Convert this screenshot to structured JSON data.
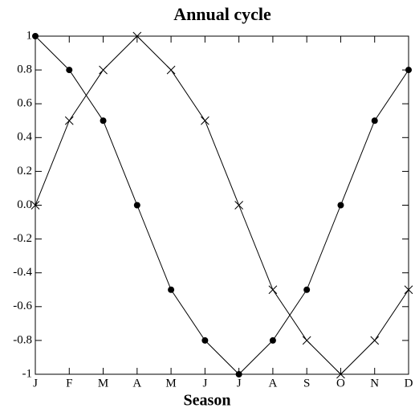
{
  "chart_data": {
    "type": "line",
    "title": "Annual cycle",
    "x_label": "Season",
    "categories": [
      "J",
      "F",
      "M",
      "A",
      "M",
      "J",
      "J",
      "A",
      "S",
      "O",
      "N",
      "D"
    ],
    "series": [
      {
        "color": "#000000",
        "marker": "circle",
        "values": [
          1,
          0.8,
          0.5,
          0,
          -0.5,
          -0.8,
          -1,
          -0.8,
          -0.5,
          0,
          0.5,
          0.8
        ]
      },
      {
        "color": "#000000",
        "marker": "cross",
        "values": [
          0,
          0.5,
          0.8,
          1,
          0.8,
          0.5,
          0,
          -0.5,
          -0.8,
          -1,
          -0.8,
          -0.5
        ]
      }
    ],
    "ylim": [
      -1,
      1
    ],
    "yticks": [
      1,
      0.8,
      0.6,
      0.4,
      0.2,
      {
        "value": 0,
        "label": "0.0"
      },
      -0.2,
      -0.4,
      -0.6,
      -0.8,
      -1
    ],
    "grid": false
  }
}
